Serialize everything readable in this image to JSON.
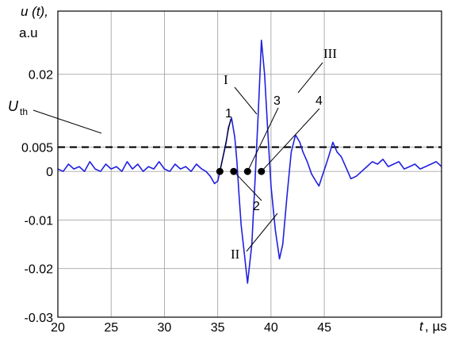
{
  "chart_data": {
    "type": "line",
    "ylabel": "u (t),",
    "yunit": "a.u",
    "xlabel_var": "t",
    "xlabel_unit": ", µs",
    "xlim": [
      20,
      56
    ],
    "ylim": [
      -0.03,
      0.033
    ],
    "x_ticks": [
      20,
      25,
      30,
      35,
      40,
      45
    ],
    "x_tick_labels": [
      "20",
      "25",
      "30",
      "35",
      "40",
      "45"
    ],
    "y_ticks": [
      -0.03,
      -0.02,
      -0.01,
      0,
      0.005,
      0.02
    ],
    "y_tick_labels": [
      "-0.03",
      "-0.02",
      "-0.01",
      "0",
      "0.005",
      "0.02"
    ],
    "grid": true,
    "threshold": {
      "label_main": "U",
      "label_sub": "th",
      "value": 0.005
    },
    "series": [
      {
        "color": "#2020e0",
        "x": [
          20,
          20.5,
          21,
          21.5,
          22,
          22.5,
          23,
          23.5,
          24,
          24.5,
          25,
          25.5,
          26,
          26.5,
          27,
          27.5,
          28,
          28.5,
          29,
          29.5,
          30,
          30.5,
          31,
          31.5,
          32,
          32.5,
          33,
          33.5,
          33.9,
          34.3,
          34.7,
          35.0,
          35.2,
          35.5,
          35.8,
          36.0,
          36.3,
          36.6,
          36.8,
          37.0,
          37.2,
          37.5,
          37.8,
          38.2,
          38.5,
          38.8,
          39.1,
          39.4,
          39.7,
          40.0,
          40.4,
          40.8,
          41.1,
          41.5,
          41.9,
          42.3,
          42.7,
          43.0,
          43.4,
          43.8,
          44.2,
          44.5,
          44.8,
          45.1,
          45.4,
          45.8,
          46.2,
          46.6,
          47.0,
          47.5,
          48.0,
          48.5,
          49.0,
          49.5,
          50.0,
          50.5,
          51.0,
          51.5,
          52.0,
          52.5,
          53.0,
          53.5,
          54.0,
          54.5,
          55.0,
          55.5,
          56.0
        ],
        "y": [
          0.0005,
          0,
          0.0015,
          0.0005,
          0.001,
          0,
          0.002,
          0.0005,
          0,
          0.0015,
          0.0005,
          0.001,
          0,
          0.002,
          0.0005,
          0.0015,
          0,
          0.001,
          0.0005,
          0.002,
          0.0005,
          0,
          0.0015,
          0.0005,
          0.001,
          0,
          0.0015,
          0.0005,
          0,
          -0.001,
          -0.0025,
          -0.002,
          0,
          0.003,
          0.006,
          0.009,
          0.011,
          0.007,
          0.002,
          -0.005,
          -0.011,
          -0.017,
          -0.023,
          -0.015,
          -0.002,
          0.012,
          0.027,
          0.02,
          0.008,
          -0.003,
          -0.012,
          -0.018,
          -0.015,
          -0.005,
          0.004,
          0.0075,
          0.006,
          0.004,
          0.002,
          -0.0005,
          -0.002,
          -0.003,
          -0.001,
          0.001,
          0.003,
          0.006,
          0.004,
          0.003,
          0.001,
          -0.0015,
          -0.001,
          0,
          0.001,
          0.002,
          0.0015,
          0.0025,
          0.001,
          0.0015,
          0.002,
          0.0005,
          0.001,
          0.0015,
          0.0005,
          0.001,
          0.0015,
          0.002,
          0.001
        ]
      }
    ],
    "crossing_points": [
      {
        "label": "1",
        "x": 35.2,
        "y": 0
      },
      {
        "label": "2",
        "x": 36.5,
        "y": 0
      },
      {
        "label": "3",
        "x": 37.8,
        "y": 0
      },
      {
        "label": "4",
        "x": 39.1,
        "y": 0
      }
    ],
    "annotations": [
      "I",
      "II",
      "III"
    ]
  }
}
